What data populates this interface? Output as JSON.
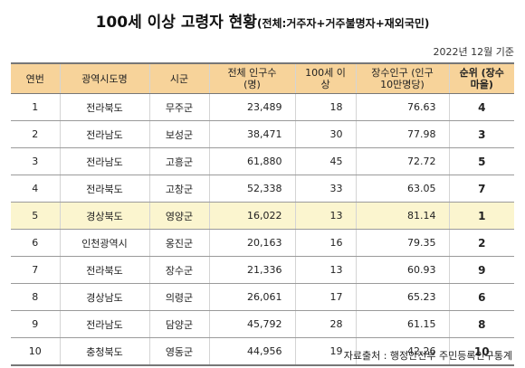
{
  "title": {
    "main": "100세 이상 고령자 현황",
    "sub": "(전체:거주자+거주불명자+재외국민)"
  },
  "date_note": "2022년 12월 기준",
  "table": {
    "headers": [
      "연번",
      "광역시도명",
      "시군",
      "전체 인구수\n(명)",
      "100세 이\n상",
      "장수인구 (인구\n10만명당)",
      "순위 (장수\n마을)"
    ],
    "rows": [
      [
        "1",
        "전라북도",
        "무주군",
        "23,489",
        "18",
        "76.63",
        "4"
      ],
      [
        "2",
        "전라남도",
        "보성군",
        "38,471",
        "30",
        "77.98",
        "3"
      ],
      [
        "3",
        "전라남도",
        "고흥군",
        "61,880",
        "45",
        "72.72",
        "5"
      ],
      [
        "4",
        "전라북도",
        "고창군",
        "52,338",
        "33",
        "63.05",
        "7"
      ],
      [
        "5",
        "경상북도",
        "영양군",
        "16,022",
        "13",
        "81.14",
        "1"
      ],
      [
        "6",
        "인천광역시",
        "옹진군",
        "20,163",
        "16",
        "79.35",
        "2"
      ],
      [
        "7",
        "전라북도",
        "장수군",
        "21,336",
        "13",
        "60.93",
        "9"
      ],
      [
        "8",
        "경상남도",
        "의령군",
        "26,061",
        "17",
        "65.23",
        "6"
      ],
      [
        "9",
        "전라남도",
        "담양군",
        "45,792",
        "28",
        "61.15",
        "8"
      ],
      [
        "10",
        "충청북도",
        "영동군",
        "44,956",
        "19",
        "42.26",
        "10"
      ]
    ],
    "highlighted_row": 4,
    "colors": {
      "header_bg": "#f7d39a",
      "highlight_bg": "#fbf5cf"
    }
  },
  "source": "자료출처 : 행정안전부 주민등록인구통계"
}
